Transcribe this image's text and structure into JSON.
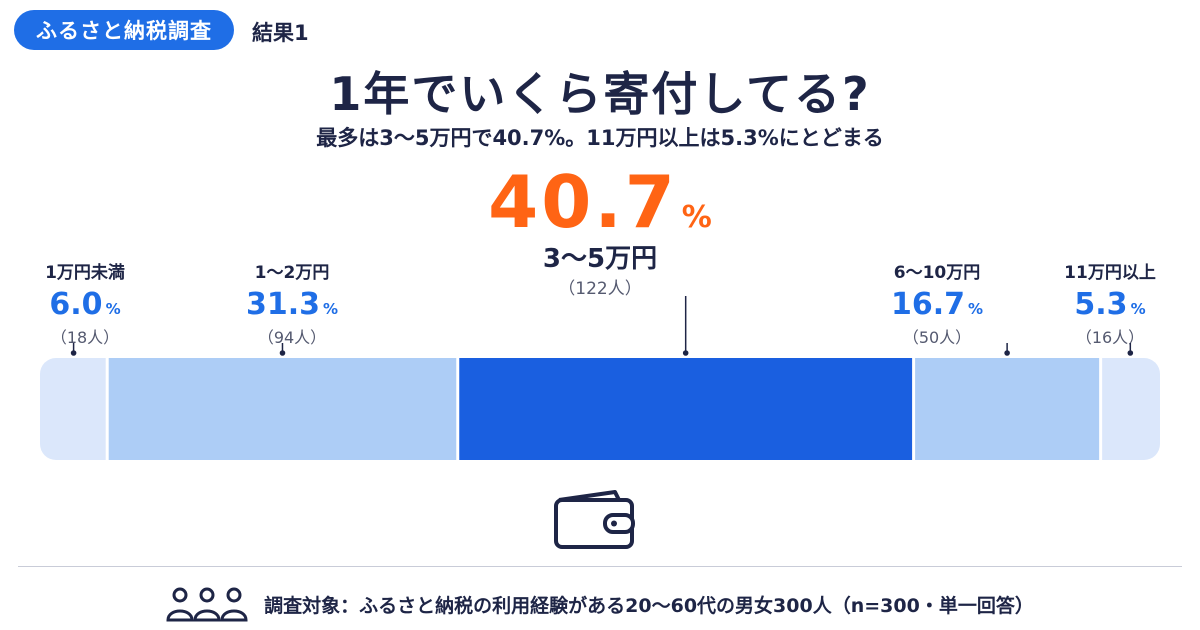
{
  "header": {
    "badge": "ふるさと納税調査",
    "result_label": "結果1"
  },
  "title": "1年でいくら寄付してる?",
  "subtitle": "最多は3～5万円で40.7%。11万円以上は5.3%にとどまる",
  "highlight": {
    "pct": "40.7",
    "unit": "%",
    "category": "3～5万円",
    "count": "（122人）"
  },
  "chart_data": {
    "type": "bar",
    "orientation": "horizontal-stacked",
    "categories": [
      "1万円未満",
      "1～2万円",
      "3～5万円",
      "6～10万円",
      "11万円以上"
    ],
    "values": [
      6.0,
      31.3,
      40.7,
      16.7,
      5.3
    ],
    "counts": [
      18,
      94,
      122,
      50,
      16
    ],
    "labels": [
      {
        "category": "1万円未満",
        "pct": "6.0",
        "count": "（18人）"
      },
      {
        "category": "1～2万円",
        "pct": "31.3",
        "count": "（94人）"
      },
      {
        "category": "6～10万円",
        "pct": "16.7",
        "count": "（50人）"
      },
      {
        "category": "11万円以上",
        "pct": "5.3",
        "count": "（16人）"
      }
    ],
    "unit": "%",
    "colors": [
      "#dbe7fb",
      "#adcdf6",
      "#1a5fe0",
      "#adcdf6",
      "#dbe7fb"
    ],
    "marker_color": "#1e2546"
  },
  "icons": {
    "wallet": "wallet-icon",
    "people": "people-icon"
  },
  "footer": {
    "note": "調査対象：ふるさと納税の利用経験がある20～60代の男女300人（n=300・単一回答）"
  }
}
